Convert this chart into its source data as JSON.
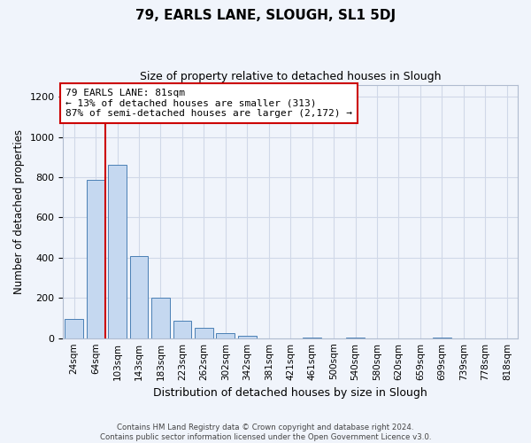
{
  "title": "79, EARLS LANE, SLOUGH, SL1 5DJ",
  "subtitle": "Size of property relative to detached houses in Slough",
  "xlabel": "Distribution of detached houses by size in Slough",
  "ylabel": "Number of detached properties",
  "categories": [
    "24sqm",
    "64sqm",
    "103sqm",
    "143sqm",
    "183sqm",
    "223sqm",
    "262sqm",
    "302sqm",
    "342sqm",
    "381sqm",
    "421sqm",
    "461sqm",
    "500sqm",
    "540sqm",
    "580sqm",
    "620sqm",
    "659sqm",
    "699sqm",
    "739sqm",
    "778sqm",
    "818sqm"
  ],
  "values": [
    95,
    785,
    860,
    410,
    200,
    85,
    52,
    25,
    12,
    0,
    0,
    5,
    0,
    5,
    0,
    0,
    0,
    5,
    0,
    0,
    0
  ],
  "bar_color": "#c5d8f0",
  "bar_edge_color": "#4a7fb5",
  "red_line_x": 1.43,
  "annotation_title": "79 EARLS LANE: 81sqm",
  "annotation_line1": "← 13% of detached houses are smaller (313)",
  "annotation_line2": "87% of semi-detached houses are larger (2,172) →",
  "annotation_box_color": "#ffffff",
  "annotation_box_edge": "#cc0000",
  "red_line_color": "#cc0000",
  "ylim": [
    0,
    1260
  ],
  "yticks": [
    0,
    200,
    400,
    600,
    800,
    1000,
    1200
  ],
  "grid_color": "#d0d8e8",
  "bg_color": "#f0f4fb",
  "footer1": "Contains HM Land Registry data © Crown copyright and database right 2024.",
  "footer2": "Contains public sector information licensed under the Open Government Licence v3.0."
}
